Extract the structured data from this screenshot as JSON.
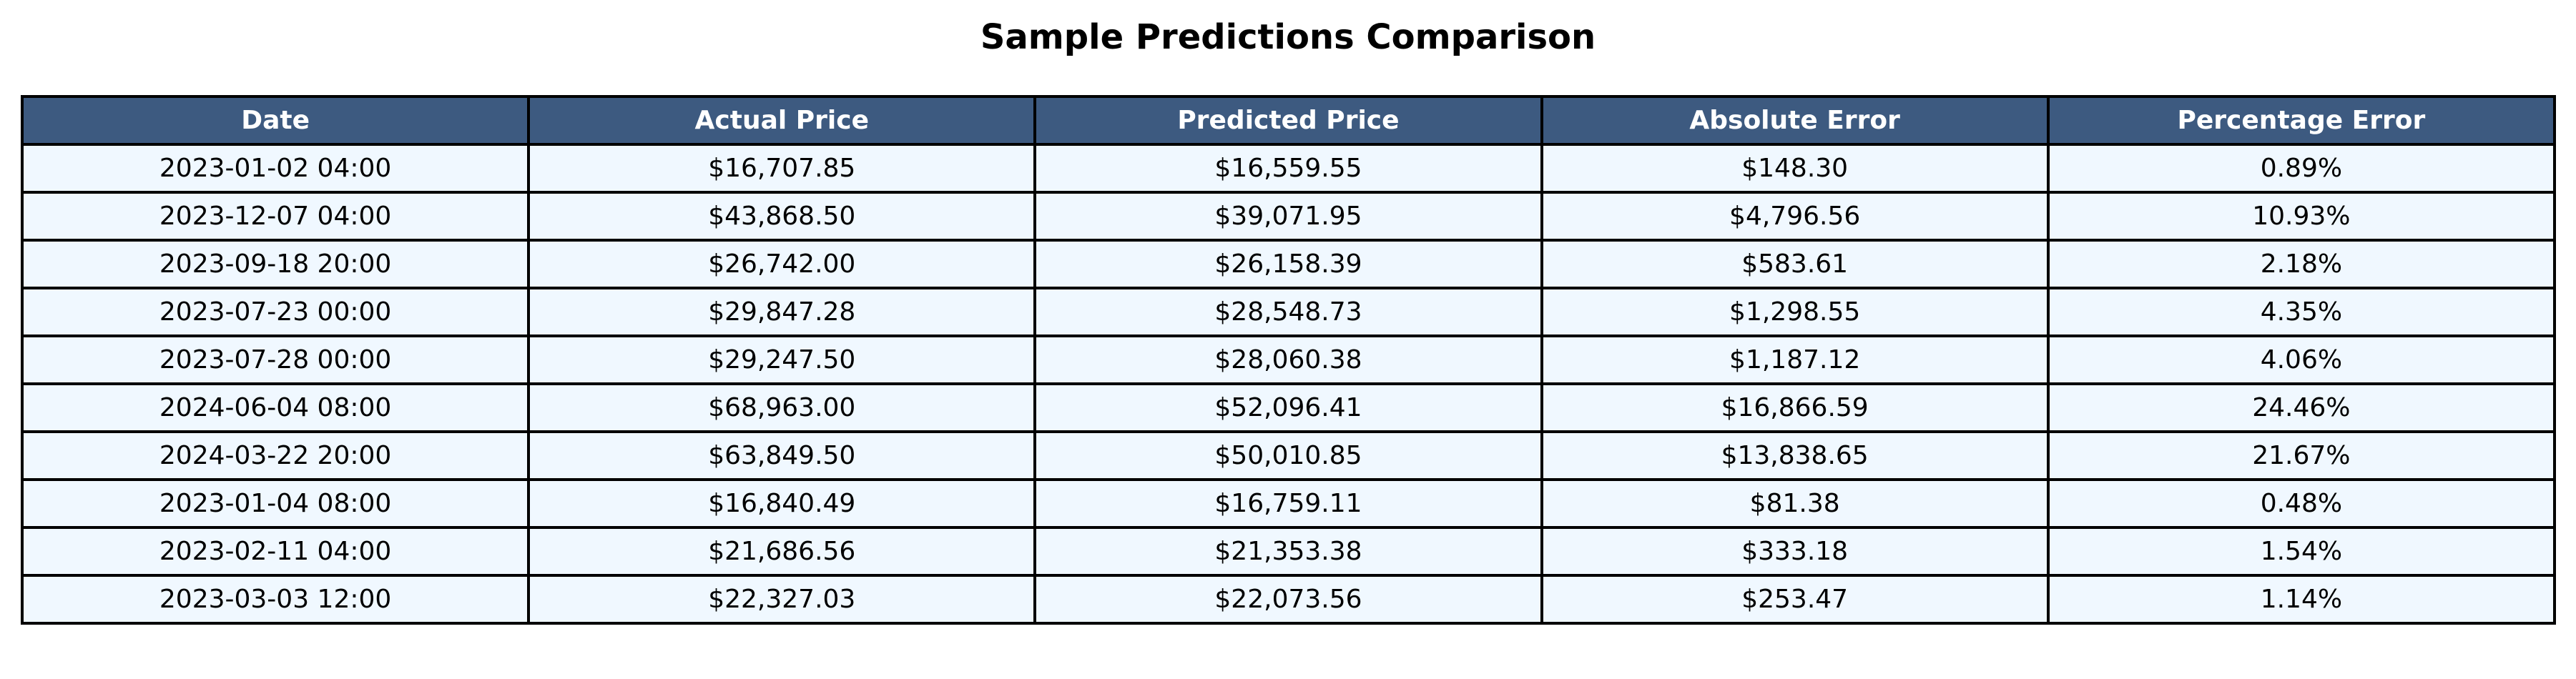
{
  "chart_data": {
    "type": "table",
    "title": "Sample Predictions Comparison",
    "columns": [
      "Date",
      "Actual Price",
      "Predicted Price",
      "Absolute Error",
      "Percentage Error"
    ],
    "rows": [
      [
        "2023-01-02 04:00",
        "$16,707.85",
        "$16,559.55",
        "$148.30",
        "0.89%"
      ],
      [
        "2023-12-07 04:00",
        "$43,868.50",
        "$39,071.95",
        "$4,796.56",
        "10.93%"
      ],
      [
        "2023-09-18 20:00",
        "$26,742.00",
        "$26,158.39",
        "$583.61",
        "2.18%"
      ],
      [
        "2023-07-23 00:00",
        "$29,847.28",
        "$28,548.73",
        "$1,298.55",
        "4.35%"
      ],
      [
        "2023-07-28 00:00",
        "$29,247.50",
        "$28,060.38",
        "$1,187.12",
        "4.06%"
      ],
      [
        "2024-06-04 08:00",
        "$68,963.00",
        "$52,096.41",
        "$16,866.59",
        "24.46%"
      ],
      [
        "2024-03-22 20:00",
        "$63,849.50",
        "$50,010.85",
        "$13,838.65",
        "21.67%"
      ],
      [
        "2023-01-04 08:00",
        "$16,840.49",
        "$16,759.11",
        "$81.38",
        "0.48%"
      ],
      [
        "2023-02-11 04:00",
        "$21,686.56",
        "$21,353.38",
        "$333.18",
        "1.54%"
      ],
      [
        "2023-03-03 12:00",
        "$22,327.03",
        "$22,073.56",
        "$253.47",
        "1.14%"
      ]
    ]
  },
  "colors": {
    "header_background": "#3d5a80",
    "header_text": "#ffffff",
    "cell_background": "#f0f8ff",
    "border": "#000000"
  }
}
